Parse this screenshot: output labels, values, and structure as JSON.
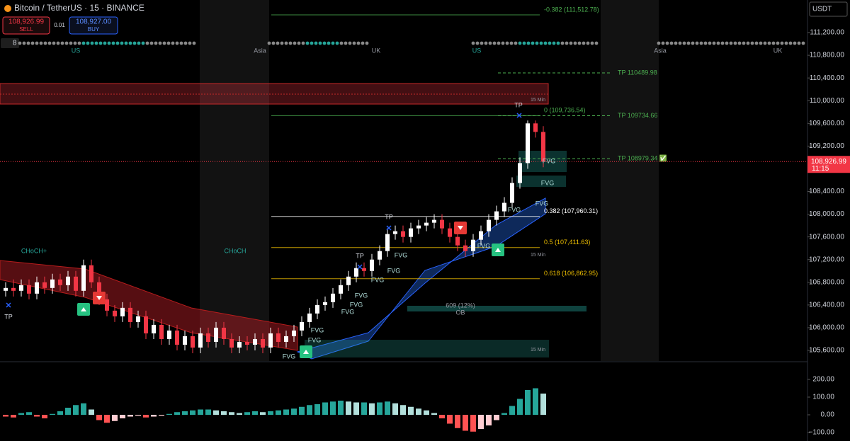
{
  "header": {
    "symbol": "Bitcoin / TetherUS · 15 · BINANCE",
    "sell": {
      "price": "108,926.99",
      "label": "SELL"
    },
    "spread": "0.01",
    "buy": {
      "price": "108,927.00",
      "label": "BUY"
    },
    "interval_count": "8"
  },
  "currency": "USDT",
  "sessions": [
    "US",
    "Asia",
    "UK",
    "US",
    "Asia",
    "UK"
  ],
  "price_panel": {
    "ylim": [
      105413,
      111774
    ],
    "yticks": [
      {
        "value": 111200,
        "label": "111,200.00"
      },
      {
        "value": 110800,
        "label": "110,800.00"
      },
      {
        "value": 110400,
        "label": "110,400.00"
      },
      {
        "value": 110000,
        "label": "110,000.00"
      },
      {
        "value": 109600,
        "label": "109,600.00"
      },
      {
        "value": 109200,
        "label": "109,200.00"
      },
      {
        "value": 108400,
        "label": "108,400.00"
      },
      {
        "value": 108000,
        "label": "108,000.00"
      },
      {
        "value": 107600,
        "label": "107,600.00"
      },
      {
        "value": 107200,
        "label": "107,200.00"
      },
      {
        "value": 106800,
        "label": "106,800.00"
      },
      {
        "value": 106400,
        "label": "106,400.00"
      },
      {
        "value": 106000,
        "label": "106,000.00"
      },
      {
        "value": 105600,
        "label": "105,600.00"
      }
    ],
    "current_price": {
      "value": 108926.99,
      "label": "108,926.99"
    },
    "countdown": "11:15",
    "candles": {
      "open": [
        106650,
        106700,
        106650,
        106750,
        106600,
        106800,
        106700,
        106850,
        106750,
        106900,
        106650,
        107100,
        106800,
        106500,
        106300,
        106200,
        106350,
        106100,
        106200,
        105900,
        106050,
        105800,
        105950,
        105700,
        105850,
        105650,
        105900,
        105750,
        106000,
        105800,
        105650,
        105750,
        105700,
        105800,
        105650,
        105900,
        105750,
        105850,
        105950,
        106100,
        106250,
        106400,
        106450,
        106600,
        106750,
        106900,
        107050,
        107000,
        107200,
        107350,
        107650,
        107700,
        107600,
        107750,
        107800,
        107850,
        107900,
        107750,
        107600,
        107450,
        107350,
        107550,
        107700,
        107900,
        108050,
        108200,
        108550,
        108900,
        109600,
        109450
      ],
      "high": [
        106800,
        106850,
        106850,
        106850,
        106900,
        106900,
        106950,
        106950,
        107000,
        107000,
        107200,
        107200,
        106900,
        106600,
        106400,
        106450,
        106450,
        106300,
        106300,
        106150,
        106150,
        106050,
        106050,
        105950,
        105950,
        106000,
        106000,
        106100,
        106100,
        105900,
        105850,
        105850,
        105900,
        105900,
        106000,
        106000,
        105950,
        106050,
        106200,
        106350,
        106500,
        106550,
        106700,
        106850,
        107000,
        107150,
        107150,
        107300,
        107450,
        107750,
        107800,
        107800,
        107850,
        107900,
        107950,
        108000,
        108000,
        107850,
        107700,
        107550,
        107650,
        107800,
        108000,
        108150,
        108300,
        108650,
        109000,
        109650,
        109650,
        109550
      ],
      "low": [
        106550,
        106550,
        106550,
        106500,
        106500,
        106600,
        106600,
        106650,
        106650,
        106550,
        106550,
        106700,
        106400,
        106200,
        106100,
        106100,
        106000,
        106000,
        105800,
        105800,
        105700,
        105700,
        105600,
        105600,
        105550,
        105550,
        105650,
        105650,
        105700,
        105550,
        105550,
        105600,
        105600,
        105550,
        105550,
        105650,
        105650,
        105750,
        105850,
        106000,
        106150,
        106300,
        106350,
        106500,
        106650,
        106800,
        106900,
        106900,
        107100,
        107250,
        107550,
        107500,
        107500,
        107650,
        107700,
        107750,
        107650,
        107500,
        107350,
        107250,
        107250,
        107450,
        107600,
        107800,
        107950,
        108100,
        108450,
        108800,
        109350,
        108827
      ],
      "close": [
        106700,
        106650,
        106750,
        106600,
        106800,
        106700,
        106850,
        106750,
        106900,
        106650,
        107100,
        106800,
        106500,
        106300,
        106200,
        106350,
        106100,
        106200,
        105900,
        106050,
        105800,
        105950,
        105700,
        105850,
        105650,
        105900,
        105750,
        106000,
        105800,
        105650,
        105750,
        105700,
        105800,
        105650,
        105900,
        105750,
        105850,
        105950,
        106100,
        106250,
        106400,
        106450,
        106600,
        106750,
        106900,
        107050,
        107000,
        107200,
        107350,
        107650,
        107700,
        107600,
        107750,
        107800,
        107850,
        107900,
        107750,
        107600,
        107450,
        107350,
        107550,
        107700,
        107900,
        108050,
        108200,
        108550,
        108900,
        109600,
        109450,
        108927
      ]
    },
    "fib": [
      {
        "value": 111512.78,
        "label": "-0.382 (111,512.78)"
      },
      {
        "value": 109736.54,
        "label": "0 (109,736.54)"
      },
      {
        "value": 107960.31,
        "label": "0.382 (107,960.31)"
      },
      {
        "value": 107411.63,
        "label": "0.5 (107,411.63)"
      },
      {
        "value": 106862.95,
        "label": "0.618 (106,862.95)"
      }
    ],
    "take_profits": [
      {
        "value": 110489.98,
        "label": "TP 110489.98"
      },
      {
        "value": 109734.66,
        "label": "TP 109734.66"
      },
      {
        "value": 108979.34,
        "label": "TP 108979.34 ✅"
      }
    ],
    "annotations": [
      "15 Min",
      "15 Min",
      "15 Min",
      "TP",
      "TP",
      "TP",
      "TP",
      "CHoCH+",
      "CHoCH",
      "609 (12%)",
      "OB",
      "FVG",
      "FVG",
      "FVG",
      "FVG",
      "FVG",
      "FVG",
      "FVG",
      "FVG",
      "FVG",
      "FVG",
      "FVG",
      "FVG",
      "FVG",
      "FVG"
    ]
  },
  "macd_panel": {
    "ylim": [
      -148,
      296
    ],
    "yticks": [
      {
        "value": 200,
        "label": "200.00"
      },
      {
        "value": 100,
        "label": "100.00"
      },
      {
        "value": 0,
        "label": "0.00"
      },
      {
        "value": -100,
        "label": "−100.00"
      }
    ],
    "histogram": [
      -10,
      -15,
      10,
      15,
      -10,
      -20,
      5,
      20,
      40,
      55,
      65,
      30,
      -30,
      -45,
      -35,
      -20,
      -10,
      -5,
      -15,
      -10,
      -5,
      5,
      15,
      20,
      25,
      30,
      30,
      25,
      20,
      15,
      10,
      15,
      20,
      15,
      20,
      25,
      30,
      35,
      45,
      55,
      60,
      70,
      75,
      80,
      75,
      70,
      70,
      65,
      70,
      75,
      65,
      55,
      45,
      35,
      25,
      10,
      -20,
      -50,
      -75,
      -90,
      -95,
      -80,
      -60,
      -30,
      10,
      50,
      90,
      140,
      150,
      120
    ]
  }
}
